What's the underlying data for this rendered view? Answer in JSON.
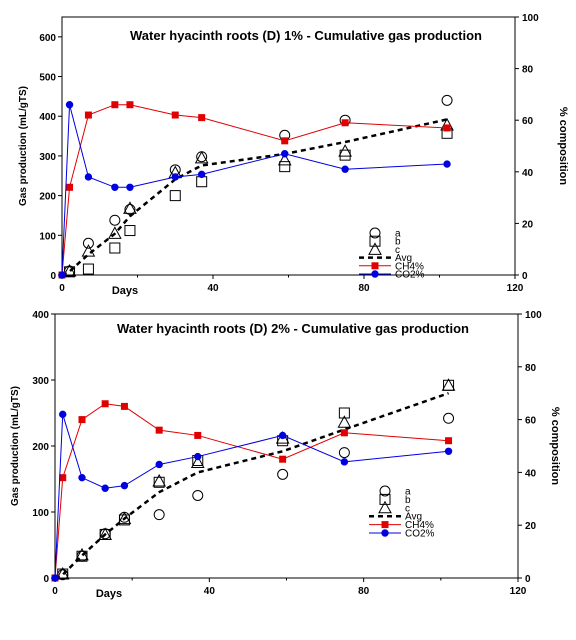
{
  "colors": {
    "ch4": "#e00000",
    "co2": "#0000e0",
    "avg": "#000000",
    "axis": "#000000"
  },
  "chart_data": [
    {
      "type": "line",
      "title": "Water hyacinth roots (D) 1% - Cumulative gas production",
      "xlabel": "Days",
      "ylabel": "Gas production (mL/gTS)",
      "y2label": "% composition",
      "xlim": [
        0,
        120
      ],
      "ylim": [
        0,
        650
      ],
      "y2lim": [
        0,
        100
      ],
      "xticks": [
        "0",
        "40",
        "80",
        "120"
      ],
      "yticks": [
        "0",
        "100",
        "200",
        "300",
        "400",
        "500",
        "600"
      ],
      "y2ticks": [
        "0",
        "20",
        "40",
        "60",
        "80",
        "100"
      ],
      "grid": false,
      "legend_position": "bottom-right",
      "series": [
        {
          "name": "a",
          "marker": "circle",
          "axis": "left",
          "x": [
            2,
            7,
            14,
            18,
            30,
            37,
            59,
            75,
            102
          ],
          "y": [
            10,
            80,
            138,
            165,
            265,
            298,
            352,
            390,
            440
          ]
        },
        {
          "name": "b",
          "marker": "square",
          "axis": "left",
          "x": [
            2,
            7,
            14,
            18,
            30,
            37,
            59,
            75,
            102
          ],
          "y": [
            8,
            15,
            68,
            112,
            200,
            235,
            273,
            302,
            357
          ]
        },
        {
          "name": "c",
          "marker": "triangle",
          "axis": "left",
          "x": [
            2,
            7,
            14,
            18,
            30,
            37,
            59,
            75,
            102
          ],
          "y": [
            10,
            60,
            105,
            168,
            258,
            295,
            290,
            312,
            378
          ]
        },
        {
          "name": "Avg",
          "style": "dashed",
          "axis": "left",
          "x": [
            0,
            2,
            7,
            14,
            18,
            30,
            37,
            59,
            75,
            102
          ],
          "y": [
            0,
            9,
            52,
            104,
            148,
            241,
            276,
            305,
            335,
            392
          ]
        },
        {
          "name": "CH4%",
          "marker": "filled-square",
          "axis": "right",
          "x": [
            0,
            2,
            7,
            14,
            18,
            30,
            37,
            59,
            75,
            102
          ],
          "y": [
            0,
            34,
            62,
            66,
            66,
            62,
            61,
            52,
            59,
            57
          ]
        },
        {
          "name": "CO2%",
          "marker": "filled-circle",
          "axis": "right",
          "x": [
            0,
            2,
            7,
            14,
            18,
            30,
            37,
            59,
            75,
            102
          ],
          "y": [
            0,
            66,
            38,
            34,
            34,
            38,
            39,
            47,
            41,
            43
          ]
        }
      ]
    },
    {
      "type": "line",
      "title": "Water hyacinth roots (D) 2% - Cumulative gas production",
      "xlabel": "Days",
      "ylabel": "Gas production (mL/gTS)",
      "y2label": "% composition",
      "xlim": [
        0,
        120
      ],
      "ylim": [
        0,
        400
      ],
      "y2lim": [
        0,
        100
      ],
      "xticks": [
        "0",
        "40",
        "80",
        "120"
      ],
      "yticks": [
        "0",
        "100",
        "200",
        "300",
        "400"
      ],
      "y2ticks": [
        "0",
        "20",
        "40",
        "60",
        "80",
        "100"
      ],
      "grid": false,
      "legend_position": "bottom-right",
      "series": [
        {
          "name": "a",
          "marker": "circle",
          "axis": "left",
          "x": [
            2,
            7,
            13,
            18,
            27,
            37,
            59,
            75,
            102
          ],
          "y": [
            5,
            33,
            67,
            92,
            96,
            125,
            157,
            190,
            242
          ]
        },
        {
          "name": "b",
          "marker": "square",
          "axis": "left",
          "x": [
            2,
            7,
            13,
            18,
            27,
            37,
            59,
            75,
            102
          ],
          "y": [
            6,
            33,
            66,
            88,
            145,
            178,
            208,
            250,
            292
          ]
        },
        {
          "name": "c",
          "marker": "triangle",
          "axis": "left",
          "x": [
            2,
            7,
            13,
            18,
            27,
            37,
            59,
            75,
            102
          ],
          "y": [
            6,
            35,
            66,
            90,
            147,
            175,
            212,
            236,
            292
          ]
        },
        {
          "name": "Avg",
          "style": "dashed",
          "axis": "left",
          "x": [
            0,
            2,
            7,
            13,
            18,
            27,
            37,
            59,
            75,
            102
          ],
          "y": [
            0,
            5,
            34,
            66,
            90,
            130,
            160,
            192,
            225,
            280
          ]
        },
        {
          "name": "CH4%",
          "marker": "filled-square",
          "axis": "right",
          "x": [
            0,
            2,
            7,
            13,
            18,
            27,
            37,
            59,
            75,
            102
          ],
          "y": [
            0,
            38,
            60,
            66,
            65,
            56,
            54,
            45,
            55,
            52
          ]
        },
        {
          "name": "CO2%",
          "marker": "filled-circle",
          "axis": "right",
          "x": [
            0,
            2,
            7,
            13,
            18,
            27,
            37,
            59,
            75,
            102
          ],
          "y": [
            0,
            62,
            38,
            34,
            35,
            43,
            46,
            54,
            44,
            48
          ]
        }
      ]
    }
  ]
}
